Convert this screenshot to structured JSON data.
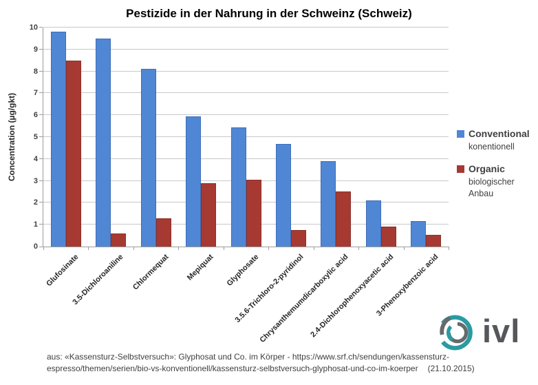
{
  "chart_data": {
    "type": "bar",
    "title": "Pestizide in der Nahrung in der Schweinz (Schweiz)",
    "ylabel": "Concentration (µg/gkt)",
    "ylim": [
      0,
      10
    ],
    "ytick_step": 1,
    "grid": true,
    "legend_position": "right",
    "categories": [
      "Glufosinate",
      "3.5-Dichloroaniline",
      "Chlormequat",
      "Mepiquat",
      "Glyphosate",
      "3.5.6-Trichloro-2-pyridinol",
      "Chrysanthemumdicarboxylic acid",
      "2.4-Dichlorophenoxyacetic acid",
      "3-Phenoxybenzoic acid"
    ],
    "series": [
      {
        "name": "Conventional",
        "sublabel": "konentionell",
        "color": "#5087D5",
        "border_color": "#3D6CB8",
        "values": [
          9.8,
          9.5,
          8.1,
          5.95,
          5.45,
          4.7,
          3.9,
          2.1,
          1.15
        ]
      },
      {
        "name": "Organic",
        "sublabel": "biologischer Anbau",
        "color": "#A63A32",
        "border_color": "#8C2F29",
        "values": [
          8.5,
          0.6,
          1.3,
          2.9,
          3.05,
          0.75,
          2.5,
          0.9,
          0.55
        ]
      }
    ]
  },
  "legend": {
    "items": [
      {
        "label": "Conventional",
        "sublabel": "konentionell",
        "color": "#5087D5"
      },
      {
        "label": "Organic",
        "sublabel": "biologischer Anbau",
        "color": "#A63A32"
      }
    ]
  },
  "footer": {
    "citation_line1": "aus: «Kassensturz-Selbstversuch»: Glyphosat und Co. im Körper - https://www.srf.ch/sendungen/kassensturz-",
    "citation_line2": "espresso/themen/serien/bio-vs-konventionell/kassensturz-selbstversuch-glyphosat-und-co-im-koerper",
    "date": "(21.10.2015)"
  },
  "logo": {
    "text": "ivl",
    "teal": "#2A9BA2",
    "gray": "#666A6D"
  },
  "colors": {
    "grid": "#C8C8C8",
    "axis": "#9B9B9B",
    "text_dark": "#3F3F3F"
  }
}
